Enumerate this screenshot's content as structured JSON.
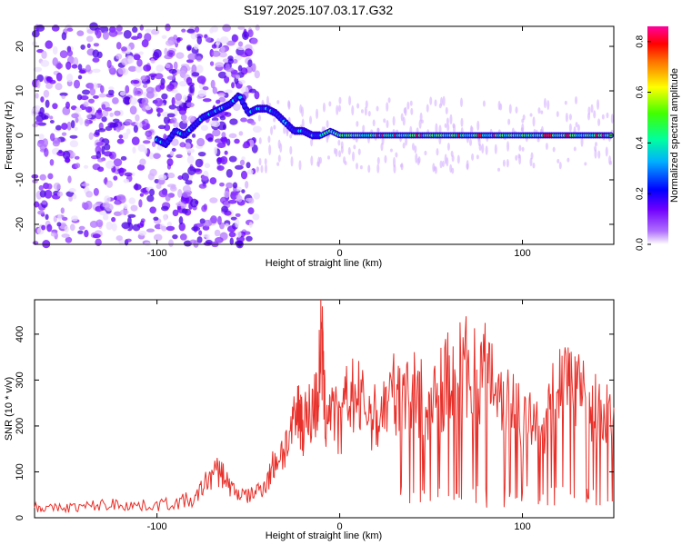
{
  "title": "S197.2025.107.03.17.G32",
  "chart_data": [
    {
      "type": "heatmap",
      "xlabel": "Height of straight line (km)",
      "ylabel": "Frequency (Hz)",
      "xlim": [
        -167,
        150
      ],
      "ylim": [
        -24.5,
        24.5
      ],
      "xticks": [
        -100,
        0,
        100
      ],
      "yticks": [
        -20,
        -10,
        0,
        10,
        20
      ],
      "colorbar": {
        "label": "Normalized spectral amplitude",
        "range": [
          0,
          0.86
        ],
        "ticks": [
          0.0,
          0.2,
          0.4,
          0.6,
          0.8
        ],
        "colors": [
          "#ffffff",
          "#8000ff",
          "#0000ff",
          "#00ffff",
          "#00ff00",
          "#ffff00",
          "#ff8000",
          "#ff0000",
          "#ff00ff"
        ]
      },
      "ridge": {
        "x": [
          -100,
          -95,
          -90,
          -85,
          -80,
          -75,
          -70,
          -65,
          -60,
          -55,
          -50,
          -45,
          -40,
          -35,
          -30,
          -25,
          -20,
          -15,
          -10,
          -5,
          0,
          10,
          20,
          40,
          60,
          80,
          100,
          120,
          140,
          150
        ],
        "y": [
          -1,
          -2,
          1,
          0,
          2,
          4,
          5,
          6,
          7,
          9,
          5,
          6,
          6,
          5,
          3,
          1,
          1,
          0,
          0,
          1,
          0,
          0,
          0,
          0,
          0,
          0,
          0,
          0,
          0,
          0
        ]
      }
    },
    {
      "type": "line",
      "xlabel": "Height of straight line (km)",
      "ylabel": "SNR (10 * v/v)",
      "xlim": [
        -167,
        150
      ],
      "ylim": [
        0,
        475
      ],
      "xticks": [
        -100,
        0,
        100
      ],
      "yticks": [
        0,
        100,
        200,
        300,
        400
      ],
      "color": "#e8302a",
      "x": [
        -167,
        -160,
        -150,
        -140,
        -130,
        -120,
        -110,
        -100,
        -90,
        -80,
        -75,
        -70,
        -65,
        -60,
        -55,
        -50,
        -45,
        -40,
        -35,
        -30,
        -25,
        -22,
        -20,
        -15,
        -12,
        -10,
        -8,
        -5,
        0,
        5,
        10,
        15,
        20,
        25,
        30,
        35,
        40,
        45,
        50,
        55,
        60,
        65,
        70,
        75,
        80,
        85,
        90,
        95,
        100,
        105,
        110,
        115,
        120,
        125,
        130,
        135,
        140,
        145,
        150
      ],
      "y": [
        25,
        20,
        22,
        24,
        28,
        30,
        26,
        28,
        32,
        40,
        80,
        110,
        120,
        80,
        60,
        55,
        70,
        90,
        150,
        180,
        230,
        280,
        240,
        280,
        300,
        470,
        250,
        300,
        220,
        320,
        300,
        280,
        250,
        290,
        320,
        350,
        330,
        300,
        280,
        320,
        370,
        380,
        390,
        360,
        380,
        370,
        300,
        310,
        260,
        240,
        230,
        280,
        350,
        370,
        340,
        290,
        280,
        270,
        240
      ]
    }
  ]
}
